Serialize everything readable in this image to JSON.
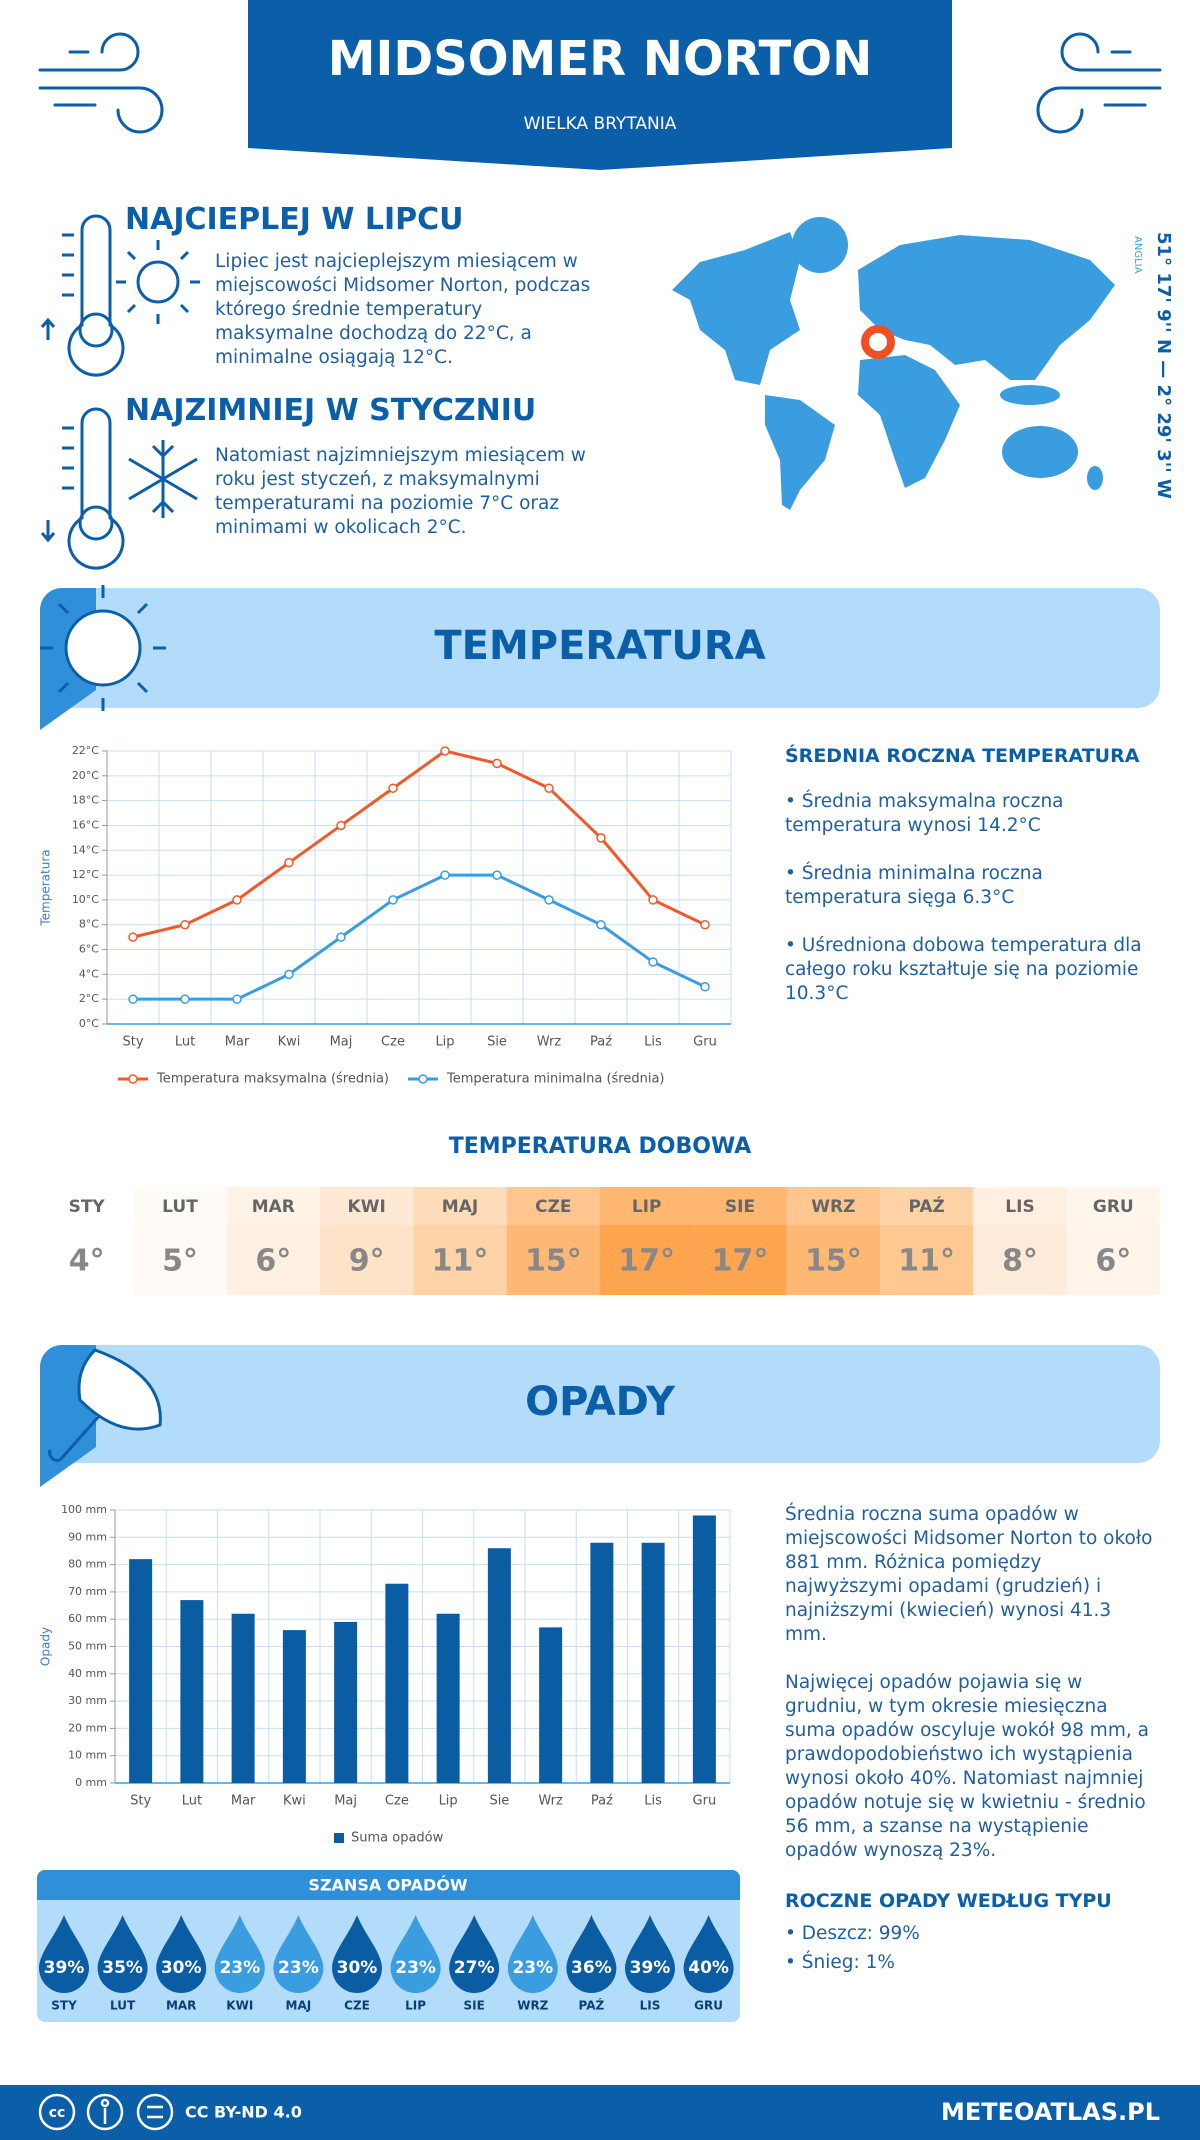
{
  "header": {
    "title": "MIDSOMER NORTON",
    "subtitle": "WIELKA BRYTANIA"
  },
  "hottest": {
    "title": "NAJCIEPLEJ W LIPCU",
    "text": "Lipiec jest najcieplejszym miesiącem w miejscowości Midsomer Norton, podczas którego średnie temperatury maksymalne dochodzą do 22°C, a minimalne osiągają 12°C."
  },
  "coldest": {
    "title": "NAJZIMNIEJ W STYCZNIU",
    "text": "Natomiast najzimniejszym miesiącem w roku jest styczeń, z maksymalnymi temperaturami na poziomie 7°C oraz minimami w okolicach 2°C."
  },
  "map": {
    "coordinates": "51° 17' 9'' N — 2° 29' 3'' W",
    "region": "ANGLIA"
  },
  "temperature": {
    "title": "TEMPERATURA",
    "summary_title": "ŚREDNIA ROCZNA TEMPERATURA",
    "bullets": [
      "• Średnia maksymalna roczna temperatura wynosi 14.2°C",
      "• Średnia minimalna roczna temperatura sięga 6.3°C",
      "• Uśredniona dobowa temperatura dla całego roku kształtuje się na poziomie 10.3°C"
    ]
  },
  "chart_data": [
    {
      "type": "line",
      "y_label": "Temperatura",
      "categories": [
        "Sty",
        "Lut",
        "Mar",
        "Kwi",
        "Maj",
        "Cze",
        "Lip",
        "Sie",
        "Wrz",
        "Paź",
        "Lis",
        "Gru"
      ],
      "series": [
        {
          "name": "Temperatura maksymalna (średnia)",
          "color": "#f05a28",
          "values": [
            7,
            8,
            10,
            13,
            16,
            19,
            22,
            21,
            19,
            15,
            10,
            8
          ]
        },
        {
          "name": "Temperatura minimalna (średnia)",
          "color": "#3a9de0",
          "values": [
            2,
            2,
            2,
            4,
            7,
            10,
            12,
            12,
            10,
            8,
            5,
            3
          ]
        }
      ],
      "ylim": [
        0,
        22
      ],
      "yticks": [
        {
          "value": 0,
          "label": "0°C"
        },
        {
          "value": 2,
          "label": "2°C"
        },
        {
          "value": 4,
          "label": "4°C"
        },
        {
          "value": 6,
          "label": "6°C"
        },
        {
          "value": 8,
          "label": "8°C"
        },
        {
          "value": 10,
          "label": "10°C"
        },
        {
          "value": 12,
          "label": "12°C"
        },
        {
          "value": 14,
          "label": "14°C"
        },
        {
          "value": 16,
          "label": "16°C"
        },
        {
          "value": 18,
          "label": "18°C"
        },
        {
          "value": 20,
          "label": "20°C"
        },
        {
          "value": 22,
          "label": "22°C"
        }
      ],
      "grid": true
    },
    {
      "type": "bar",
      "y_label": "Opady",
      "categories": [
        "Sty",
        "Lut",
        "Mar",
        "Kwi",
        "Maj",
        "Cze",
        "Lip",
        "Sie",
        "Wrz",
        "Paź",
        "Lis",
        "Gru"
      ],
      "series": [
        {
          "name": "Suma opadów",
          "color": "#0a5ca3",
          "values": [
            82,
            67,
            62,
            56,
            59,
            73,
            62,
            86,
            57,
            88,
            88,
            98
          ]
        }
      ],
      "ylim": [
        0,
        100
      ],
      "yticks": [
        {
          "value": 0,
          "label": "0 mm"
        },
        {
          "value": 10,
          "label": "10 mm"
        },
        {
          "value": 20,
          "label": "20 mm"
        },
        {
          "value": 30,
          "label": "30 mm"
        },
        {
          "value": 40,
          "label": "40 mm"
        },
        {
          "value": 50,
          "label": "50 mm"
        },
        {
          "value": 60,
          "label": "60 mm"
        },
        {
          "value": 70,
          "label": "70 mm"
        },
        {
          "value": 80,
          "label": "80 mm"
        },
        {
          "value": 90,
          "label": "90 mm"
        },
        {
          "value": 100,
          "label": "100 mm"
        }
      ],
      "grid": true
    }
  ],
  "daily": {
    "title": "TEMPERATURA DOBOWA",
    "months": [
      "STY",
      "LUT",
      "MAR",
      "KWI",
      "MAJ",
      "CZE",
      "LIP",
      "SIE",
      "WRZ",
      "PAŹ",
      "LIS",
      "GRU"
    ],
    "values": [
      "4°",
      "5°",
      "6°",
      "9°",
      "11°",
      "15°",
      "17°",
      "17°",
      "15°",
      "11°",
      "8°",
      "6°"
    ],
    "colors": [
      "#ffffff",
      "#fffaf5",
      "#fff0e2",
      "#ffe3c9",
      "#ffd3a8",
      "#ffb874",
      "#ffa54f",
      "#ffa54f",
      "#ffb874",
      "#ffc890",
      "#ffebd9",
      "#fff4ea"
    ]
  },
  "precipitation": {
    "title": "OPADY",
    "paragraphs": [
      "Średnia roczna suma opadów w miejscowości Midsomer Norton to około 881 mm. Różnica pomiędzy najwyższymi opadami (grudzień) i najniższymi (kwiecień) wynosi 41.3 mm.",
      "Najwięcej opadów pojawia się w grudniu, w tym okresie miesięczna suma opadów oscyluje wokół 98 mm, a prawdopodobieństwo ich wystąpienia wynosi około 40%. Natomiast najmniej opadów notuje się w kwietniu - średnio 56 mm, a szanse na wystąpienie opadów wynoszą 23%."
    ],
    "chance_title": "SZANSA OPADÓW",
    "chance_months": [
      "STY",
      "LUT",
      "MAR",
      "KWI",
      "MAJ",
      "CZE",
      "LIP",
      "SIE",
      "WRZ",
      "PAŹ",
      "LIS",
      "GRU"
    ],
    "chance": [
      "39%",
      "35%",
      "30%",
      "23%",
      "23%",
      "30%",
      "23%",
      "27%",
      "23%",
      "36%",
      "39%",
      "40%"
    ],
    "chance_colors": [
      "#0a5ca3",
      "#0a5ca3",
      "#0a5ca3",
      "#3a9de0",
      "#3a9de0",
      "#0a5ca3",
      "#3a9de0",
      "#0a5ca3",
      "#3a9de0",
      "#0a5ca3",
      "#0a5ca3",
      "#0a5ca3"
    ],
    "type_title": "ROCZNE OPADY WEDŁUG TYPU",
    "types": [
      "• Deszcz: 99%",
      "• Śnieg: 1%"
    ]
  },
  "footer": {
    "license": "CC BY-ND 4.0",
    "site": "METEOATLAS.PL"
  }
}
